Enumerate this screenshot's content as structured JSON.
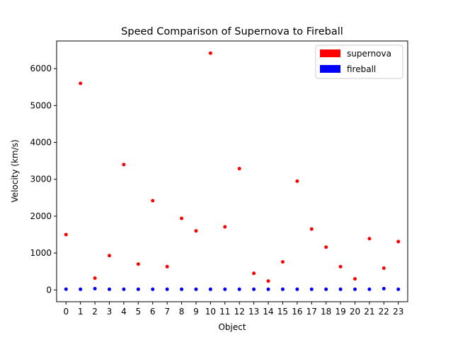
{
  "chart_data": {
    "type": "scatter",
    "title": "Speed Comparison of Supernova to Fireball",
    "xlabel": "Object",
    "ylabel": "Velocity (km/s)",
    "x": [
      0,
      1,
      2,
      3,
      4,
      5,
      6,
      7,
      8,
      9,
      10,
      11,
      12,
      13,
      14,
      15,
      16,
      17,
      18,
      19,
      20,
      21,
      22,
      23
    ],
    "x_ticks": [
      "0",
      "1",
      "2",
      "3",
      "4",
      "5",
      "6",
      "7",
      "8",
      "9",
      "10",
      "11",
      "12",
      "13",
      "14",
      "15",
      "16",
      "17",
      "18",
      "19",
      "20",
      "21",
      "22",
      "23"
    ],
    "y_ticks": [
      0,
      1000,
      2000,
      3000,
      4000,
      5000,
      6000
    ],
    "xlim": [
      -0.65,
      23.65
    ],
    "ylim": [
      -320,
      6750
    ],
    "grid": false,
    "legend_position": "top-right",
    "series": [
      {
        "name": "supernova",
        "color": "#ff0000",
        "values": [
          1500,
          5600,
          320,
          930,
          3400,
          700,
          2420,
          630,
          1940,
          1600,
          6420,
          1710,
          3290,
          450,
          240,
          760,
          2950,
          1650,
          1160,
          630,
          300,
          1390,
          590,
          1310
        ]
      },
      {
        "name": "fireball",
        "color": "#0000ff",
        "values": [
          20,
          18,
          35,
          18,
          18,
          18,
          18,
          18,
          18,
          18,
          18,
          18,
          18,
          18,
          18,
          18,
          18,
          18,
          18,
          18,
          18,
          18,
          35,
          18
        ]
      }
    ]
  }
}
